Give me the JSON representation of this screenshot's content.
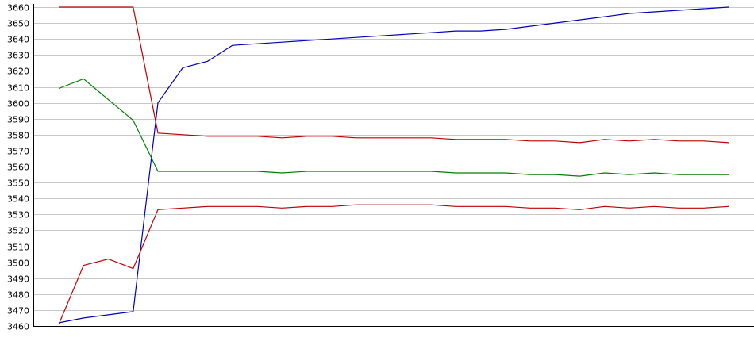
{
  "chart_data": {
    "type": "line",
    "title": "",
    "xlabel": "",
    "ylabel": "",
    "ylim": [
      3460,
      3660
    ],
    "yticks": [
      3460,
      3470,
      3480,
      3490,
      3500,
      3510,
      3520,
      3530,
      3540,
      3550,
      3560,
      3570,
      3580,
      3590,
      3600,
      3610,
      3620,
      3630,
      3640,
      3650,
      3660
    ],
    "grid": true,
    "legend": "none",
    "x": [
      0,
      1,
      2,
      3,
      4,
      5,
      6,
      7,
      8,
      9,
      10,
      11,
      12,
      13,
      14,
      15,
      16,
      17,
      18,
      19,
      20,
      21,
      22,
      23,
      24,
      25,
      26,
      27
    ],
    "series": [
      {
        "color": "#c00000",
        "values": [
          3660,
          3660,
          3660,
          3660,
          3581,
          3580,
          3579,
          3579,
          3579,
          3578,
          3579,
          3579,
          3578,
          3578,
          3578,
          3578,
          3577,
          3577,
          3577,
          3576,
          3576,
          3575,
          3577,
          3576,
          3577,
          3576,
          3576,
          3575
        ]
      },
      {
        "color": "#0000c0",
        "values": [
          3462,
          3465,
          3467,
          3469,
          3600,
          3622,
          3626,
          3636,
          3637,
          3638,
          3639,
          3640,
          3641,
          3642,
          3643,
          3644,
          3645,
          3645,
          3646,
          3648,
          3650,
          3652,
          3654,
          3656,
          3657,
          3658,
          3659,
          3660
        ]
      },
      {
        "color": "#008000",
        "values": [
          3609,
          3615,
          3602,
          3589,
          3557,
          3557,
          3557,
          3557,
          3557,
          3556,
          3557,
          3557,
          3557,
          3557,
          3557,
          3557,
          3556,
          3556,
          3556,
          3555,
          3555,
          3554,
          3556,
          3555,
          3556,
          3555,
          3555,
          3555
        ]
      },
      {
        "color": "#c00000",
        "values": [
          3461,
          3498,
          3502,
          3496,
          3533,
          3534,
          3535,
          3535,
          3535,
          3534,
          3535,
          3535,
          3536,
          3536,
          3536,
          3536,
          3535,
          3535,
          3535,
          3534,
          3534,
          3533,
          3535,
          3534,
          3535,
          3534,
          3534,
          3535
        ]
      }
    ]
  }
}
